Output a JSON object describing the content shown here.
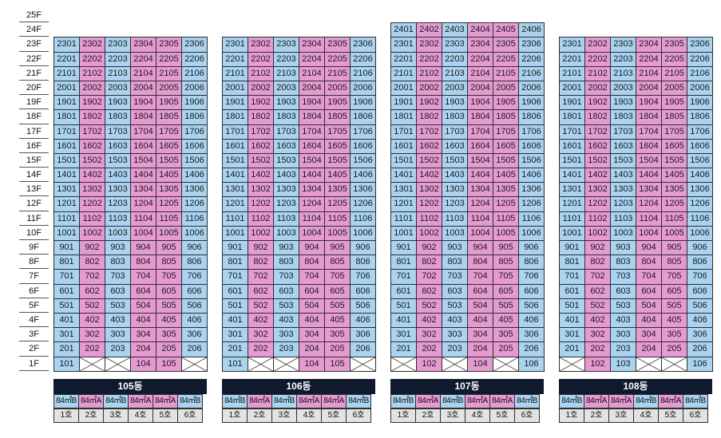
{
  "floors": [
    "25F",
    "24F",
    "23F",
    "22F",
    "21F",
    "20F",
    "19F",
    "18F",
    "17F",
    "16F",
    "15F",
    "14F",
    "13F",
    "12F",
    "11F",
    "10F",
    "9F",
    "8F",
    "7F",
    "6F",
    "5F",
    "4F",
    "3F",
    "2F",
    "1F"
  ],
  "colors": {
    "blue": "#a9d3f0",
    "pink": "#e69ad2",
    "header": "#0f1a2e",
    "ho_bg": "#e3e3e3"
  },
  "buildings": [
    {
      "name": "105동",
      "top_floor": 23,
      "first_floor_units": [
        "101",
        "",
        "",
        "104",
        "105",
        ""
      ],
      "unit_colors": [
        "blue",
        "pink",
        "blue",
        "pink",
        "pink",
        "blue"
      ],
      "types": [
        "84㎡B",
        "84㎡A",
        "84㎡B",
        "84㎡A",
        "84㎡A",
        "84㎡B"
      ],
      "ho": [
        "1호",
        "2호",
        "3호",
        "4호",
        "5호",
        "6호"
      ]
    },
    {
      "name": "106동",
      "top_floor": 23,
      "first_floor_units": [
        "101",
        "",
        "",
        "104",
        "105",
        ""
      ],
      "unit_colors": [
        "blue",
        "pink",
        "blue",
        "pink",
        "pink",
        "blue"
      ],
      "types": [
        "84㎡B",
        "84㎡A",
        "84㎡B",
        "84㎡A",
        "84㎡A",
        "84㎡B"
      ],
      "ho": [
        "1호",
        "2호",
        "3호",
        "4호",
        "5호",
        "6호"
      ]
    },
    {
      "name": "107동",
      "top_floor": 24,
      "first_floor_units": [
        "",
        "102",
        "",
        "104",
        "",
        "106"
      ],
      "unit_colors": [
        "blue",
        "pink",
        "blue",
        "pink",
        "pink",
        "blue"
      ],
      "types": [
        "84㎡B",
        "84㎡A",
        "84㎡B",
        "84㎡A",
        "84㎡A",
        "84㎡B"
      ],
      "ho": [
        "1호",
        "2호",
        "3호",
        "4호",
        "5호",
        "6호"
      ]
    },
    {
      "name": "108동",
      "top_floor": 23,
      "first_floor_units": [
        "",
        "102",
        "103",
        "",
        "",
        "106"
      ],
      "unit_colors": [
        "blue",
        "pink",
        "blue",
        "pink",
        "pink",
        "blue"
      ],
      "types": [
        "84㎡B",
        "84㎡A",
        "84㎡A",
        "84㎡B",
        "84㎡A",
        "84㎡B"
      ],
      "ho": [
        "1호",
        "2호",
        "3호",
        "4호",
        "5호",
        "6호"
      ]
    }
  ]
}
